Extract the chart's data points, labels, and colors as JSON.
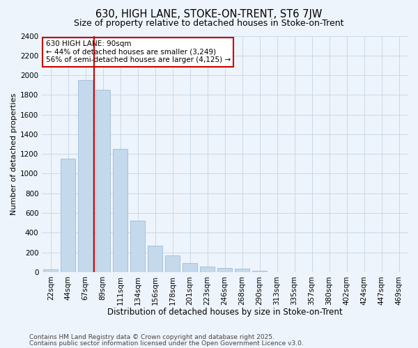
{
  "title1": "630, HIGH LANE, STOKE-ON-TRENT, ST6 7JW",
  "title2": "Size of property relative to detached houses in Stoke-on-Trent",
  "xlabel": "Distribution of detached houses by size in Stoke-on-Trent",
  "ylabel": "Number of detached properties",
  "categories": [
    "22sqm",
    "44sqm",
    "67sqm",
    "89sqm",
    "111sqm",
    "134sqm",
    "156sqm",
    "178sqm",
    "201sqm",
    "223sqm",
    "246sqm",
    "268sqm",
    "290sqm",
    "313sqm",
    "335sqm",
    "357sqm",
    "380sqm",
    "402sqm",
    "424sqm",
    "447sqm",
    "469sqm"
  ],
  "values": [
    30,
    1150,
    1950,
    1850,
    1250,
    520,
    270,
    170,
    90,
    55,
    40,
    35,
    10,
    2,
    0,
    0,
    0,
    0,
    0,
    0,
    0
  ],
  "bar_color": "#c5d9ec",
  "bar_edge_color": "#8fb4d4",
  "grid_color": "#c8d8e8",
  "background_color": "#eef4fb",
  "red_line_index": 3,
  "red_line_color": "#cc0000",
  "annotation_text": "630 HIGH LANE: 90sqm\n← 44% of detached houses are smaller (3,249)\n56% of semi-detached houses are larger (4,125) →",
  "annotation_box_color": "#ffffff",
  "annotation_box_edge_color": "#cc0000",
  "ylim": [
    0,
    2400
  ],
  "yticks": [
    0,
    200,
    400,
    600,
    800,
    1000,
    1200,
    1400,
    1600,
    1800,
    2000,
    2200,
    2400
  ],
  "footer1": "Contains HM Land Registry data © Crown copyright and database right 2025.",
  "footer2": "Contains public sector information licensed under the Open Government Licence v3.0.",
  "title1_fontsize": 10.5,
  "title2_fontsize": 9,
  "xlabel_fontsize": 8.5,
  "ylabel_fontsize": 8,
  "tick_fontsize": 7.5,
  "annotation_fontsize": 7.5,
  "footer_fontsize": 6.5
}
